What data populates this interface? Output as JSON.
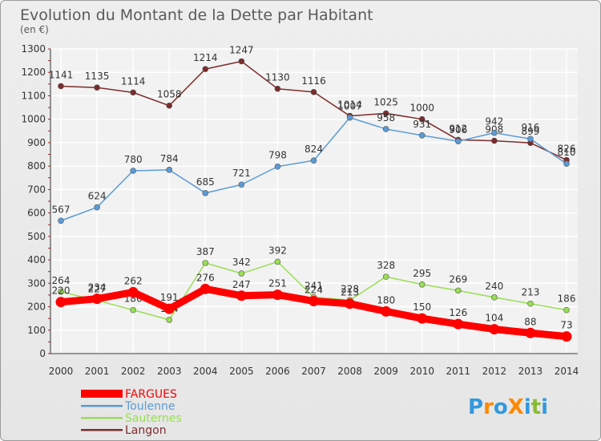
{
  "chart_data": {
    "type": "line",
    "title": "Evolution du Montant de la Dette par Habitant",
    "subtitle": "(en €)",
    "categories": [
      "2000",
      "2001",
      "2002",
      "2003",
      "2004",
      "2005",
      "2006",
      "2007",
      "2008",
      "2009",
      "2010",
      "2011",
      "2012",
      "2013",
      "2014"
    ],
    "ylim": [
      0,
      1300
    ],
    "yticks": [
      0,
      100,
      200,
      300,
      400,
      500,
      600,
      700,
      800,
      900,
      1000,
      1100,
      1200,
      1300
    ],
    "grid": true,
    "legend_position": "bottom-left",
    "series": [
      {
        "name": "FARGUES",
        "color": "#ff0000",
        "values": [
          220,
          234,
          262,
          191,
          276,
          247,
          251,
          224,
          213,
          180,
          150,
          126,
          104,
          88,
          73
        ]
      },
      {
        "name": "Toulenne",
        "color": "#5b9bd5",
        "values": [
          567,
          624,
          780,
          784,
          685,
          721,
          798,
          824,
          1007,
          958,
          931,
          906,
          942,
          916,
          810
        ]
      },
      {
        "name": "Sauternes",
        "color": "#99dd55",
        "values": [
          264,
          227,
          186,
          144,
          387,
          342,
          392,
          241,
          228,
          328,
          295,
          269,
          240,
          213,
          186
        ]
      },
      {
        "name": "Langon",
        "color": "#7b2c2c",
        "values": [
          1141,
          1135,
          1114,
          1058,
          1214,
          1247,
          1130,
          1116,
          1014,
          1025,
          1000,
          912,
          908,
          899,
          826
        ]
      }
    ]
  },
  "logo": {
    "text": "ProXiti",
    "letter_colors": [
      "#3399dd",
      "#ff8800",
      "#3399dd",
      "#ff8800",
      "#3399dd",
      "#88bb33",
      "#3399dd"
    ]
  }
}
